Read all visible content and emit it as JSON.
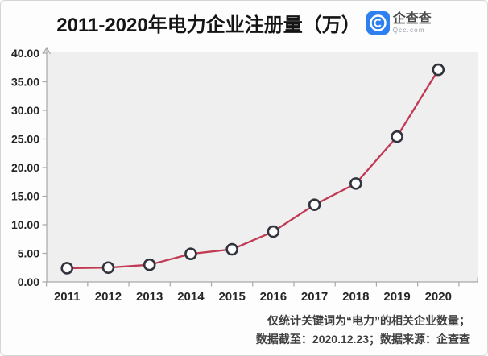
{
  "card": {
    "title": "2011-2020年电力企业注册量（万）",
    "logo": {
      "name": "企查查",
      "domain": "Qcc.com"
    },
    "footnote_line1": "仅统计关键词为“电力”的相关企业数量；",
    "footnote_line2": "数据截至：2020.12.23；数据来源：企查查"
  },
  "colors": {
    "line": "#c13a54",
    "marker_fill": "#fdfdfd",
    "marker_stroke": "#31343c",
    "plot_bg": "#f0eff0",
    "axis": "#a8a8a8",
    "tick_label": "#262626",
    "logo_blue": "#2e7ff0"
  },
  "chart_data": {
    "type": "line",
    "title": "2011-2020年电力企业注册量（万）",
    "categories": [
      "2011",
      "2012",
      "2013",
      "2014",
      "2015",
      "2016",
      "2017",
      "2018",
      "2019",
      "2020"
    ],
    "values": [
      2.4,
      2.5,
      3.0,
      4.9,
      5.7,
      8.8,
      13.5,
      17.2,
      25.4,
      37.1
    ],
    "xlabel": "",
    "ylabel": "",
    "ylim": [
      0,
      40
    ],
    "ytick_step": 5,
    "ytick_decimals": 2,
    "grid": false,
    "legend": null,
    "marker": "open-circle",
    "y_axis_arrow": true
  }
}
